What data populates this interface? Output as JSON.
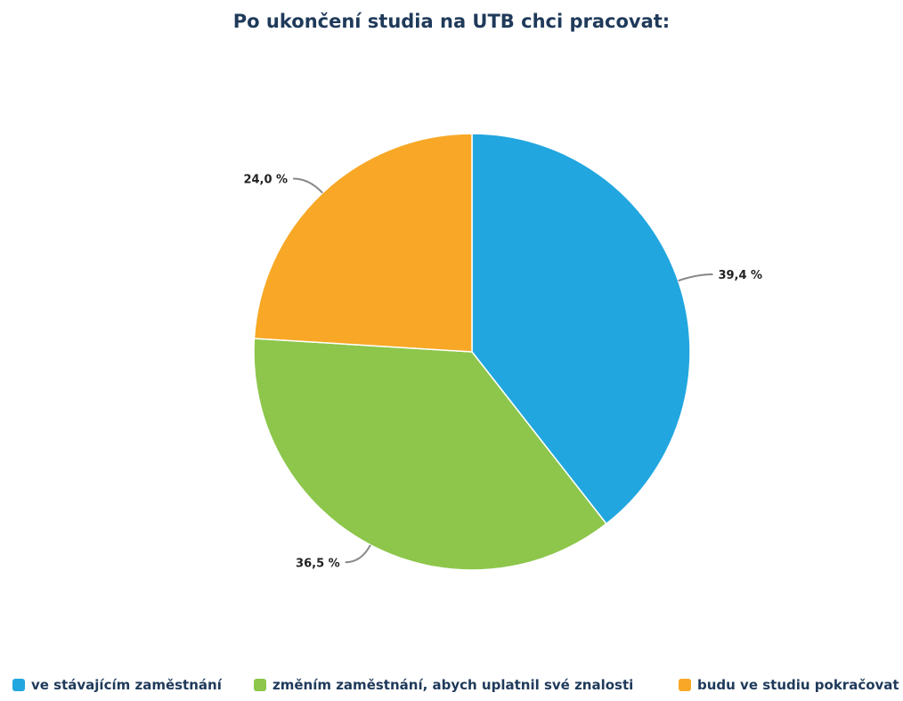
{
  "chart_data": {
    "type": "pie",
    "title": "Po ukončení studia na UTB chci pracovat:",
    "categories": [
      "ve stávajícím zaměstnání",
      "změním zaměstnání, abych uplatnil své znalosti",
      "budu ve studiu pokračovat"
    ],
    "values": [
      39.4,
      36.5,
      24.0
    ],
    "data_labels": [
      "39,4 %",
      "36,5 %",
      "24,0 %"
    ],
    "colors": [
      "#21a6e0",
      "#8dc64b",
      "#f8a826"
    ],
    "legend_position": "bottom",
    "start_angle": "top",
    "direction": "clockwise"
  }
}
